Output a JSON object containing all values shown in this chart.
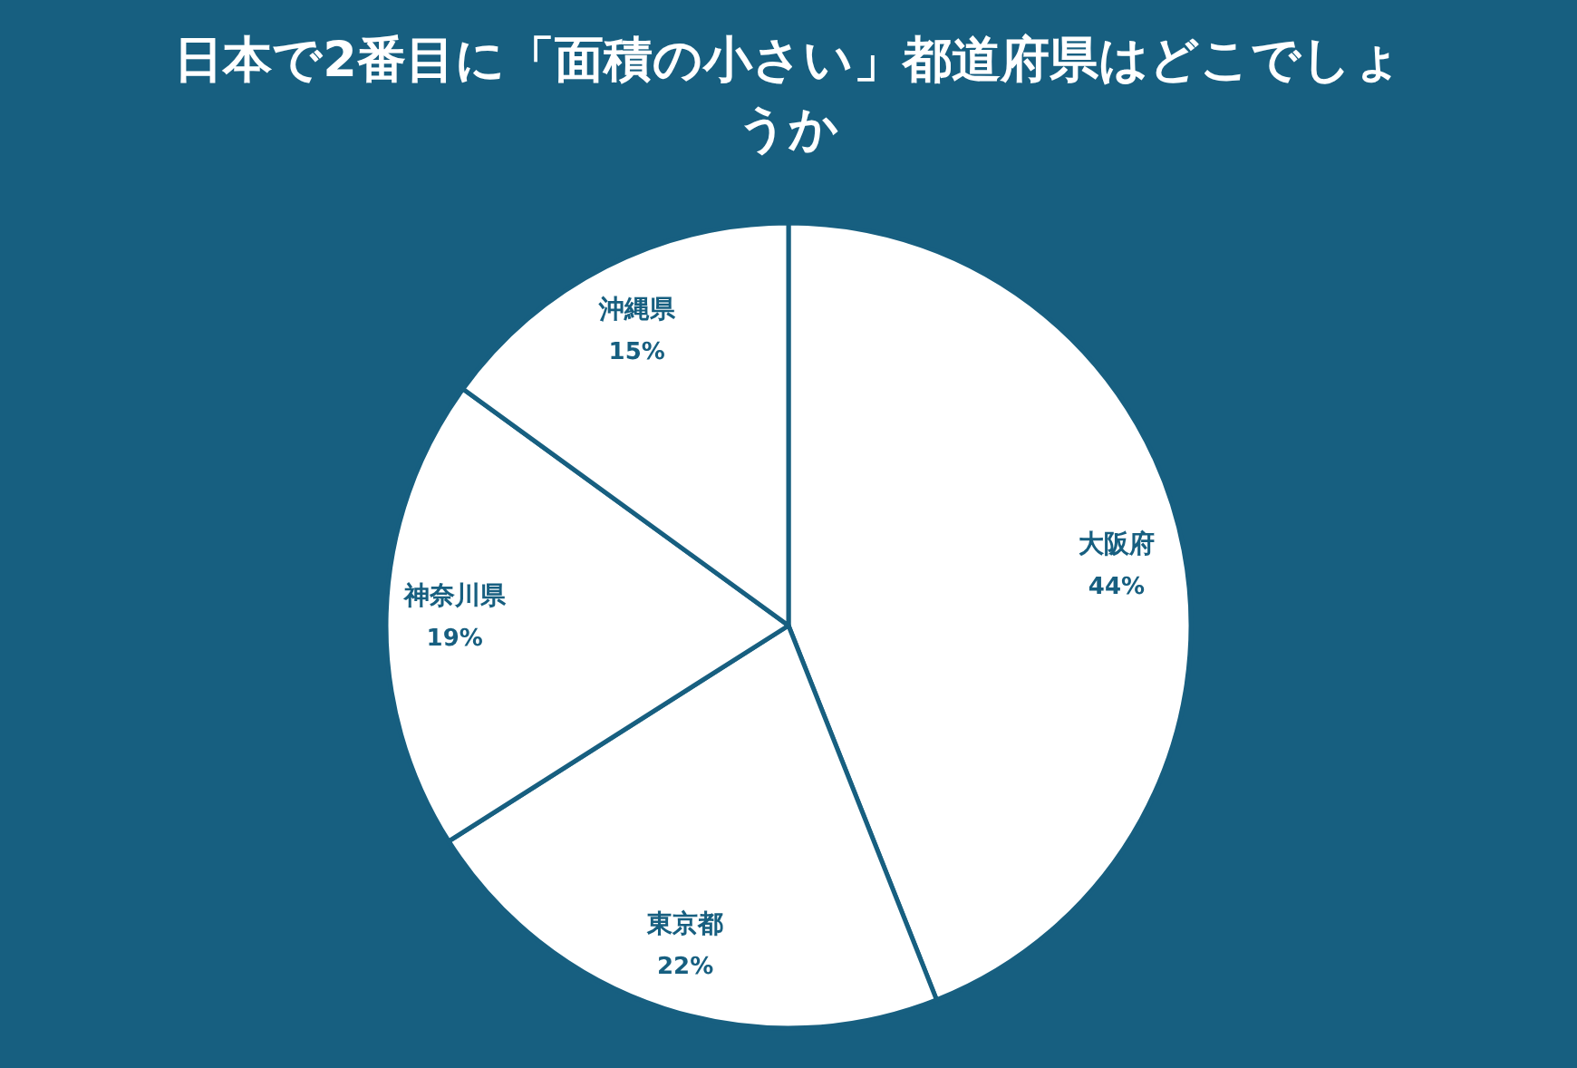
{
  "chart_data": {
    "type": "pie",
    "title": "日本で2番目に「面積の小さい」都道府県はどこでしょうか",
    "categories": [
      "大阪府",
      "東京都",
      "神奈川県",
      "沖縄県"
    ],
    "values": [
      44,
      22,
      19,
      15
    ],
    "colors": [
      "#ffffff",
      "#ffffff",
      "#ffffff",
      "#ffffff"
    ],
    "value_labels": [
      "44%",
      "22%",
      "19%",
      "15%"
    ]
  }
}
